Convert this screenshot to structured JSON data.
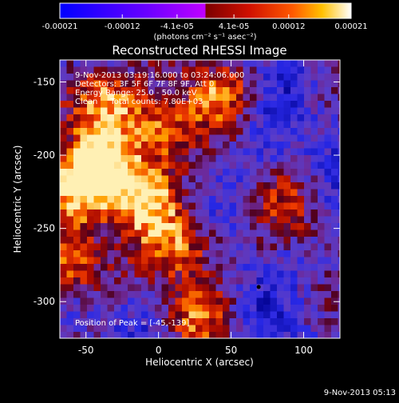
{
  "colorbar": {
    "tick_labels": [
      "-0.00021",
      "-0.00012",
      "-4.1e-05",
      "4.1e-05",
      "0.00012",
      "0.00021"
    ],
    "tick_values": [
      -0.00021,
      -0.00012,
      -4.1e-05,
      4.1e-05,
      0.00012,
      0.00021
    ],
    "range": [
      -0.00021,
      0.00021
    ],
    "units_label": "(photons cm⁻² s⁻¹ asec⁻²)",
    "colors": [
      "#0000ff",
      "#6a00ff",
      "#c000ff",
      "#7a0000",
      "#d01000",
      "#ff5a00",
      "#ffc000",
      "#ffffff"
    ]
  },
  "chart_data": {
    "type": "heatmap",
    "title": "Reconstructed RHESSI Image",
    "xlabel": "Heliocentric X (arcsec)",
    "ylabel": "Heliocentric Y (arcsec)",
    "xlim": [
      -68,
      125
    ],
    "ylim": [
      -325,
      -135
    ],
    "xticks": [
      -50,
      0,
      50,
      100
    ],
    "yticks": [
      -150,
      -200,
      -250,
      -300
    ],
    "annotations": {
      "time_range": "9-Nov-2013 03:19:16.000 to 03:24:06.000",
      "detectors": "Detectors: 3F 5F 6F 7F 8F 9F, Att 0",
      "energy_range": "Energy Range: 25.0 - 50.0 keV",
      "clean": "Clean     Total counts: 7.80E+03",
      "peak_position": "Position of Peak = [-45,-139]"
    },
    "marker_point": {
      "x": 69,
      "y": -290
    },
    "hot_regions": [
      {
        "x": -40,
        "y": -160,
        "strength": 0.95
      },
      {
        "x": 0,
        "y": -185,
        "strength": 0.9
      },
      {
        "x": -40,
        "y": -205,
        "strength": 0.85
      },
      {
        "x": -10,
        "y": -230,
        "strength": 1.0
      },
      {
        "x": -60,
        "y": -225,
        "strength": 0.8
      },
      {
        "x": -55,
        "y": -275,
        "strength": 0.9
      },
      {
        "x": 20,
        "y": -262,
        "strength": 0.75
      },
      {
        "x": 40,
        "y": -155,
        "strength": 0.7
      },
      {
        "x": 25,
        "y": -310,
        "strength": 0.6
      },
      {
        "x": 95,
        "y": -235,
        "strength": 0.5
      }
    ]
  },
  "footer": {
    "timestamp": "9-Nov-2013 05:13"
  }
}
